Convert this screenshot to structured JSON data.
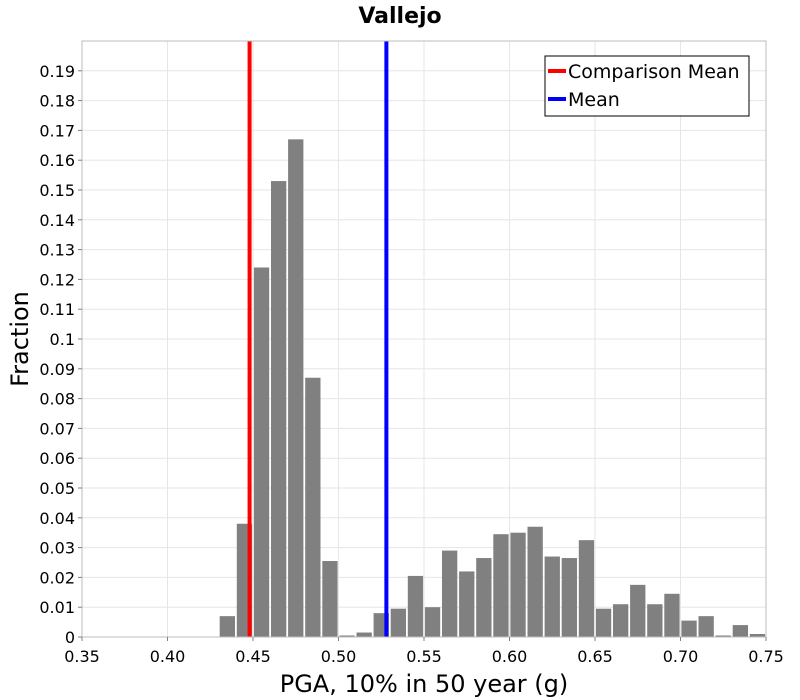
{
  "chart_data": {
    "type": "bar",
    "title": "Vallejo",
    "xlabel": "PGA, 10% in 50 year (g)",
    "ylabel": "Fraction",
    "xlim": [
      0.35,
      0.75
    ],
    "ylim": [
      0,
      0.2
    ],
    "x_ticks": [
      "0.35",
      "0.40",
      "0.45",
      "0.50",
      "0.55",
      "0.60",
      "0.65",
      "0.70",
      "0.75"
    ],
    "x_tick_values": [
      0.35,
      0.4,
      0.45,
      0.5,
      0.55,
      0.6,
      0.65,
      0.7,
      0.75
    ],
    "y_ticks": [
      "0",
      "0.01",
      "0.02",
      "0.03",
      "0.04",
      "0.05",
      "0.06",
      "0.07",
      "0.08",
      "0.09",
      "0.1",
      "0.11",
      "0.12",
      "0.13",
      "0.14",
      "0.15",
      "0.16",
      "0.17",
      "0.18",
      "0.19"
    ],
    "y_tick_values": [
      0,
      0.01,
      0.02,
      0.03,
      0.04,
      0.05,
      0.06,
      0.07,
      0.08,
      0.09,
      0.1,
      0.11,
      0.12,
      0.13,
      0.14,
      0.15,
      0.16,
      0.17,
      0.18,
      0.19
    ],
    "bin_width": 0.01,
    "bins": [
      {
        "x": 0.43,
        "value": 0.007
      },
      {
        "x": 0.44,
        "value": 0.038
      },
      {
        "x": 0.45,
        "value": 0.124
      },
      {
        "x": 0.46,
        "value": 0.153
      },
      {
        "x": 0.47,
        "value": 0.167
      },
      {
        "x": 0.48,
        "value": 0.087
      },
      {
        "x": 0.49,
        "value": 0.0255
      },
      {
        "x": 0.5,
        "value": 0.0005
      },
      {
        "x": 0.51,
        "value": 0.0015
      },
      {
        "x": 0.52,
        "value": 0.008
      },
      {
        "x": 0.53,
        "value": 0.0095
      },
      {
        "x": 0.54,
        "value": 0.0205
      },
      {
        "x": 0.55,
        "value": 0.01
      },
      {
        "x": 0.56,
        "value": 0.029
      },
      {
        "x": 0.57,
        "value": 0.022
      },
      {
        "x": 0.58,
        "value": 0.0265
      },
      {
        "x": 0.59,
        "value": 0.0345
      },
      {
        "x": 0.6,
        "value": 0.035
      },
      {
        "x": 0.61,
        "value": 0.037
      },
      {
        "x": 0.62,
        "value": 0.027
      },
      {
        "x": 0.63,
        "value": 0.0265
      },
      {
        "x": 0.64,
        "value": 0.0325
      },
      {
        "x": 0.65,
        "value": 0.0095
      },
      {
        "x": 0.66,
        "value": 0.011
      },
      {
        "x": 0.67,
        "value": 0.0175
      },
      {
        "x": 0.68,
        "value": 0.011
      },
      {
        "x": 0.69,
        "value": 0.0145
      },
      {
        "x": 0.7,
        "value": 0.0055
      },
      {
        "x": 0.71,
        "value": 0.007
      },
      {
        "x": 0.72,
        "value": 0.0005
      },
      {
        "x": 0.73,
        "value": 0.004
      },
      {
        "x": 0.74,
        "value": 0.001
      }
    ],
    "bar_color": "#808080",
    "lines": [
      {
        "name": "Comparison Mean",
        "x": 0.448,
        "color": "#ff0000"
      },
      {
        "name": "Mean",
        "x": 0.528,
        "color": "#0000ff"
      }
    ],
    "legend_position": "top-right",
    "grid": true
  }
}
